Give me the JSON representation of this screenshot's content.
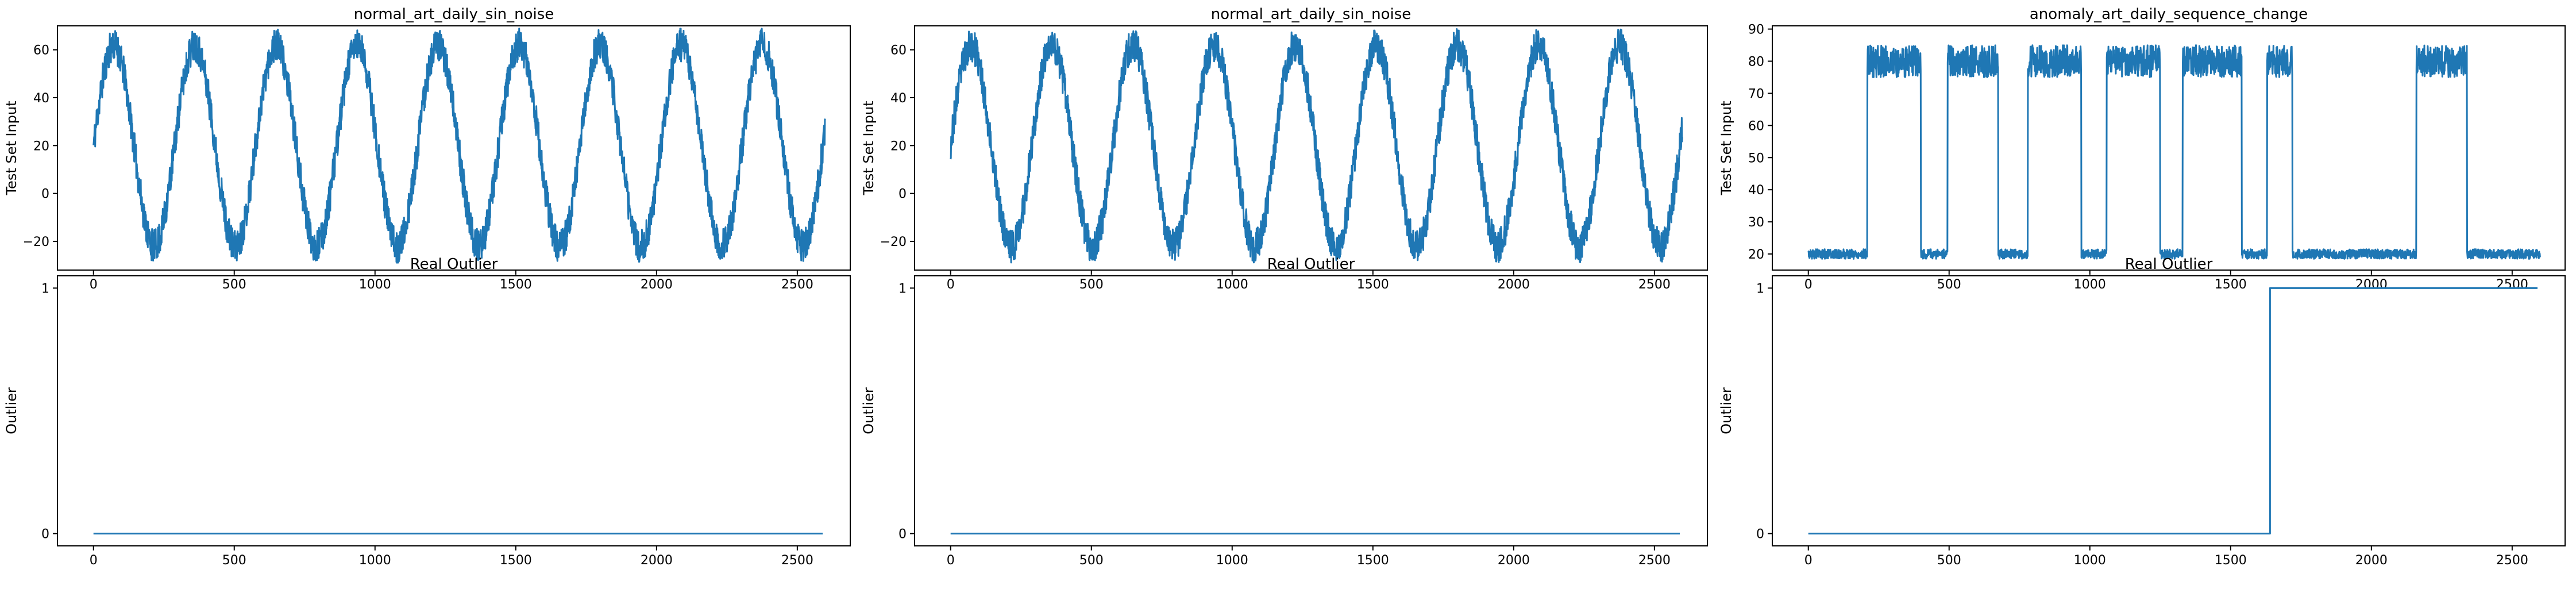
{
  "chart_data": [
    {
      "type": "line",
      "title": "normal_art_daily_sin_noise",
      "ylabel": "Test Set Input",
      "xlim": [
        -128,
        2688
      ],
      "ylim": [
        -32,
        70
      ],
      "xticks": [
        0,
        500,
        1000,
        1500,
        2000,
        2500
      ],
      "yticks": [
        -20,
        0,
        20,
        40,
        60
      ],
      "signal": {
        "kind": "sine",
        "n": 2600,
        "mean": 20,
        "amplitude": 42,
        "period": 288,
        "phase_start": 20,
        "noise": 7,
        "seed": 11
      },
      "series_color": "#1f77b4"
    },
    {
      "type": "line",
      "title": "normal_art_daily_sin_noise",
      "ylabel": "Test Set Input",
      "xlim": [
        -128,
        2688
      ],
      "ylim": [
        -32,
        70
      ],
      "xticks": [
        0,
        500,
        1000,
        1500,
        2000,
        2500
      ],
      "yticks": [
        -20,
        0,
        20,
        40,
        60
      ],
      "signal": {
        "kind": "sine",
        "n": 2600,
        "mean": 20,
        "amplitude": 42,
        "period": 288,
        "phase_start": 20,
        "noise": 7,
        "seed": 23
      },
      "series_color": "#1f77b4"
    },
    {
      "type": "line",
      "title": "anomaly_art_daily_sequence_change",
      "ylabel": "Test Set Input",
      "xlim": [
        -128,
        2688
      ],
      "ylim": [
        15,
        91
      ],
      "xticks": [
        0,
        500,
        1000,
        1500,
        2000,
        2500
      ],
      "yticks": [
        20,
        30,
        40,
        50,
        60,
        70,
        80,
        90
      ],
      "signal": {
        "kind": "steps",
        "n": 2600,
        "low": 20,
        "low_noise": 1.5,
        "high": 80,
        "high_noise": 5,
        "high_intervals": [
          [
            210,
            400
          ],
          [
            495,
            675
          ],
          [
            780,
            970
          ],
          [
            1060,
            1250
          ],
          [
            1330,
            1540
          ],
          [
            1630,
            1720
          ],
          [
            2160,
            2340
          ]
        ],
        "seed": 5
      },
      "series_color": "#1f77b4"
    },
    {
      "type": "line",
      "title": "Real Outlier",
      "ylabel": "Outlier",
      "xlim": [
        -128,
        2688
      ],
      "ylim": [
        -0.05,
        1.05
      ],
      "xticks": [
        0,
        500,
        1000,
        1500,
        2000,
        2500
      ],
      "yticks": [
        0,
        1
      ],
      "x": [
        0,
        2590
      ],
      "y": [
        0,
        0
      ],
      "series_color": "#1f77b4"
    },
    {
      "type": "line",
      "title": "Real Outlier",
      "ylabel": "Outlier",
      "xlim": [
        -128,
        2688
      ],
      "ylim": [
        -0.05,
        1.05
      ],
      "xticks": [
        0,
        500,
        1000,
        1500,
        2000,
        2500
      ],
      "yticks": [
        0,
        1
      ],
      "x": [
        0,
        2590
      ],
      "y": [
        0,
        0
      ],
      "series_color": "#1f77b4"
    },
    {
      "type": "line",
      "title": "Real Outlier",
      "ylabel": "Outlier",
      "xlim": [
        -128,
        2688
      ],
      "ylim": [
        -0.05,
        1.05
      ],
      "xticks": [
        0,
        500,
        1000,
        1500,
        2000,
        2500
      ],
      "yticks": [
        0,
        1
      ],
      "x": [
        0,
        1640,
        1640,
        2590
      ],
      "y": [
        0,
        0,
        1,
        1
      ],
      "series_color": "#1f77b4"
    }
  ]
}
